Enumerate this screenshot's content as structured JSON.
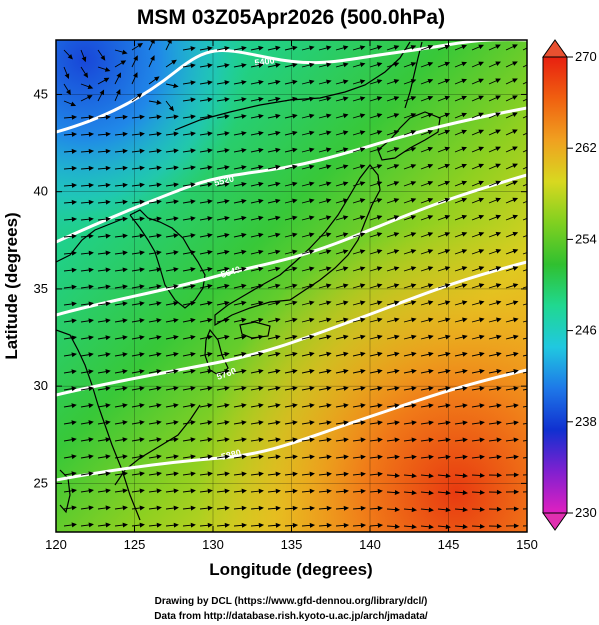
{
  "title": "MSM 03Z05Apr2026 (500.0hPa)",
  "x_axis": {
    "label": "Longitude (degrees)",
    "ticks": [
      "120",
      "125",
      "130",
      "135",
      "140",
      "145",
      "150"
    ],
    "range": [
      120,
      150
    ]
  },
  "y_axis": {
    "label": "Latitude  (degrees)",
    "ticks": [
      "25",
      "30",
      "35",
      "40",
      "45"
    ],
    "range": [
      22.5,
      47.8
    ]
  },
  "colorbar": {
    "ticks": [
      "270",
      "262",
      "254",
      "246",
      "238",
      "230"
    ],
    "range": [
      230,
      270
    ],
    "colors": [
      "#e020c0",
      "#8020d0",
      "#1030d0",
      "#1e78e8",
      "#20c8e0",
      "#20d890",
      "#30c030",
      "#80d020",
      "#d8d820",
      "#f0a020",
      "#f06010",
      "#e82010"
    ]
  },
  "contours": [
    {
      "label": "5400"
    },
    {
      "label": "5520"
    },
    {
      "label": "5640"
    },
    {
      "label": "5760"
    },
    {
      "label": "5880"
    }
  ],
  "credits": {
    "line1": "Drawing by DCL (https://www.gfd-dennou.org/library/dcl/)",
    "line2": "Data from http://database.rish.kyoto-u.ac.jp/arch/jmadata/"
  },
  "colors": {
    "contour": "#ffffff",
    "grid": "#000000",
    "arrows": "#000000",
    "coast": "#000000"
  }
}
